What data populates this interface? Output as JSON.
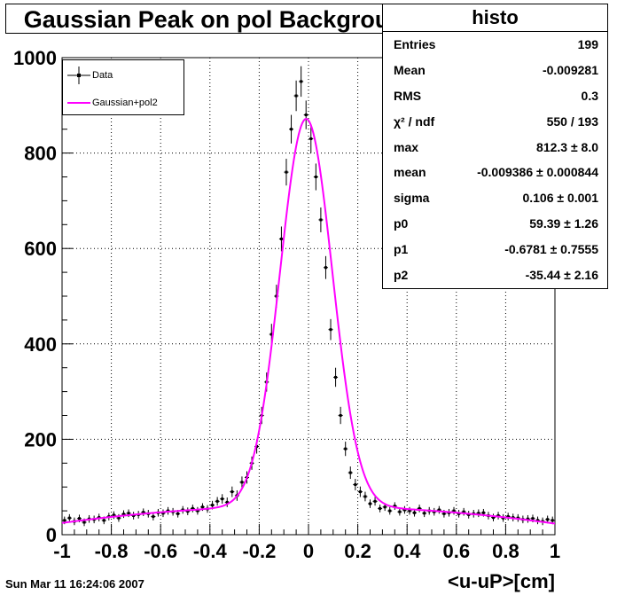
{
  "title": "Gaussian Peak on pol Background",
  "stats": {
    "name": "histo",
    "rows": [
      {
        "label": "Entries",
        "value": "199"
      },
      {
        "label": "Mean",
        "value": "-0.009281"
      },
      {
        "label": "RMS",
        "value": "0.3"
      },
      {
        "label": "χ² / ndf",
        "value": "550 / 193"
      },
      {
        "label": "max",
        "value": "812.3 ± 8.0"
      },
      {
        "label": "mean",
        "value": "-0.009386 ± 0.000844"
      },
      {
        "label": "sigma",
        "value": "0.106 ± 0.001"
      },
      {
        "label": "p0",
        "value": "59.39 ± 1.26"
      },
      {
        "label": "p1",
        "value": "-0.6781 ± 0.7555"
      },
      {
        "label": "p2",
        "value": "-35.44 ± 2.16"
      }
    ]
  },
  "legend": {
    "data_label": "Data",
    "fit_label": "Gaussian+pol2"
  },
  "date": "Sun Mar 11 16:24:06 2007",
  "colors": {
    "fit": "#ff00ff",
    "data": "#000000"
  },
  "chart_data": {
    "type": "scatter",
    "xlabel": "<u-uP>[cm]",
    "ylabel": "",
    "xlim": [
      -1,
      1
    ],
    "ylim": [
      0,
      1000
    ],
    "grid": true,
    "legend_position": "top-left",
    "x_ticks": [
      "-1",
      "-0.8",
      "-0.6",
      "-0.4",
      "-0.2",
      "0",
      "0.2",
      "0.4",
      "0.6",
      "0.8",
      "1"
    ],
    "y_ticks": [
      "0",
      "200",
      "400",
      "600",
      "800",
      "1000"
    ],
    "series": [
      {
        "name": "Data",
        "x": [
          -0.99,
          -0.97,
          -0.95,
          -0.93,
          -0.91,
          -0.89,
          -0.87,
          -0.85,
          -0.83,
          -0.81,
          -0.79,
          -0.77,
          -0.75,
          -0.73,
          -0.71,
          -0.69,
          -0.67,
          -0.65,
          -0.63,
          -0.61,
          -0.59,
          -0.57,
          -0.55,
          -0.53,
          -0.51,
          -0.49,
          -0.47,
          -0.45,
          -0.43,
          -0.41,
          -0.39,
          -0.37,
          -0.35,
          -0.33,
          -0.31,
          -0.29,
          -0.27,
          -0.25,
          -0.23,
          -0.21,
          -0.19,
          -0.17,
          -0.15,
          -0.13,
          -0.11,
          -0.09,
          -0.07,
          -0.05,
          -0.03,
          -0.01,
          0.01,
          0.03,
          0.05,
          0.07,
          0.09,
          0.11,
          0.13,
          0.15,
          0.17,
          0.19,
          0.21,
          0.23,
          0.25,
          0.27,
          0.29,
          0.31,
          0.33,
          0.35,
          0.37,
          0.39,
          0.41,
          0.43,
          0.45,
          0.47,
          0.49,
          0.51,
          0.53,
          0.55,
          0.57,
          0.59,
          0.61,
          0.63,
          0.65,
          0.67,
          0.69,
          0.71,
          0.73,
          0.75,
          0.77,
          0.79,
          0.81,
          0.83,
          0.85,
          0.87,
          0.89,
          0.91,
          0.93,
          0.95,
          0.97,
          0.99
        ],
        "y": [
          30,
          35,
          28,
          34,
          26,
          33,
          32,
          36,
          30,
          38,
          41,
          35,
          43,
          45,
          40,
          42,
          47,
          44,
          38,
          46,
          45,
          50,
          48,
          44,
          52,
          49,
          55,
          50,
          58,
          54,
          62,
          70,
          75,
          68,
          90,
          82,
          110,
          120,
          150,
          185,
          250,
          320,
          420,
          500,
          620,
          760,
          850,
          920,
          950,
          880,
          830,
          750,
          660,
          560,
          430,
          330,
          250,
          180,
          130,
          105,
          90,
          80,
          65,
          70,
          55,
          58,
          50,
          60,
          48,
          52,
          50,
          46,
          55,
          45,
          50,
          48,
          52,
          44,
          46,
          50,
          44,
          48,
          42,
          44,
          45,
          46,
          40,
          36,
          40,
          35,
          38,
          36,
          35,
          32,
          33,
          34,
          30,
          28,
          32,
          30
        ],
        "y_err": [
          8,
          8,
          8,
          8,
          8,
          8,
          8,
          8,
          8,
          8,
          8,
          8,
          8,
          8,
          8,
          8,
          8,
          8,
          8,
          8,
          8,
          8,
          8,
          8,
          8,
          8,
          8,
          8,
          8,
          8,
          9,
          9,
          10,
          10,
          11,
          11,
          12,
          13,
          14,
          15,
          18,
          20,
          22,
          24,
          26,
          28,
          30,
          32,
          32,
          30,
          30,
          28,
          26,
          24,
          22,
          20,
          18,
          15,
          13,
          12,
          11,
          10,
          9,
          9,
          8,
          8,
          8,
          8,
          8,
          8,
          8,
          8,
          8,
          8,
          8,
          8,
          8,
          8,
          8,
          8,
          8,
          8,
          8,
          8,
          8,
          8,
          8,
          8,
          8,
          8,
          8,
          8,
          8,
          8,
          8,
          8,
          8,
          8,
          8,
          8
        ]
      },
      {
        "name": "Gaussian+pol2",
        "type": "line",
        "model": {
          "max": 812.3,
          "mean": -0.009386,
          "sigma": 0.106,
          "p0": 59.39,
          "p1": -0.6781,
          "p2": -35.44
        }
      }
    ]
  }
}
